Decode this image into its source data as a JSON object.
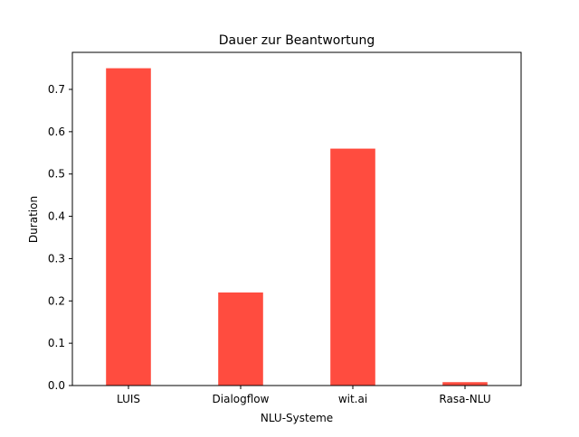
{
  "chart_data": {
    "type": "bar",
    "title": "Dauer zur Beantwortung",
    "xlabel": "NLU-Systeme",
    "ylabel": "Duration",
    "categories": [
      "LUIS",
      "Dialogflow",
      "wit.ai",
      "Rasa-NLU"
    ],
    "values": [
      0.75,
      0.22,
      0.56,
      0.008
    ],
    "ylim": [
      0,
      0.7875
    ],
    "yticks": [
      0.0,
      0.1,
      0.2,
      0.3,
      0.4,
      0.5,
      0.6,
      0.7
    ],
    "ytick_labels": [
      "0.0",
      "0.1",
      "0.2",
      "0.3",
      "0.4",
      "0.5",
      "0.6",
      "0.7"
    ],
    "grid": false,
    "colors": {
      "bar": "#ff4c3f",
      "axis": "#000000"
    }
  }
}
